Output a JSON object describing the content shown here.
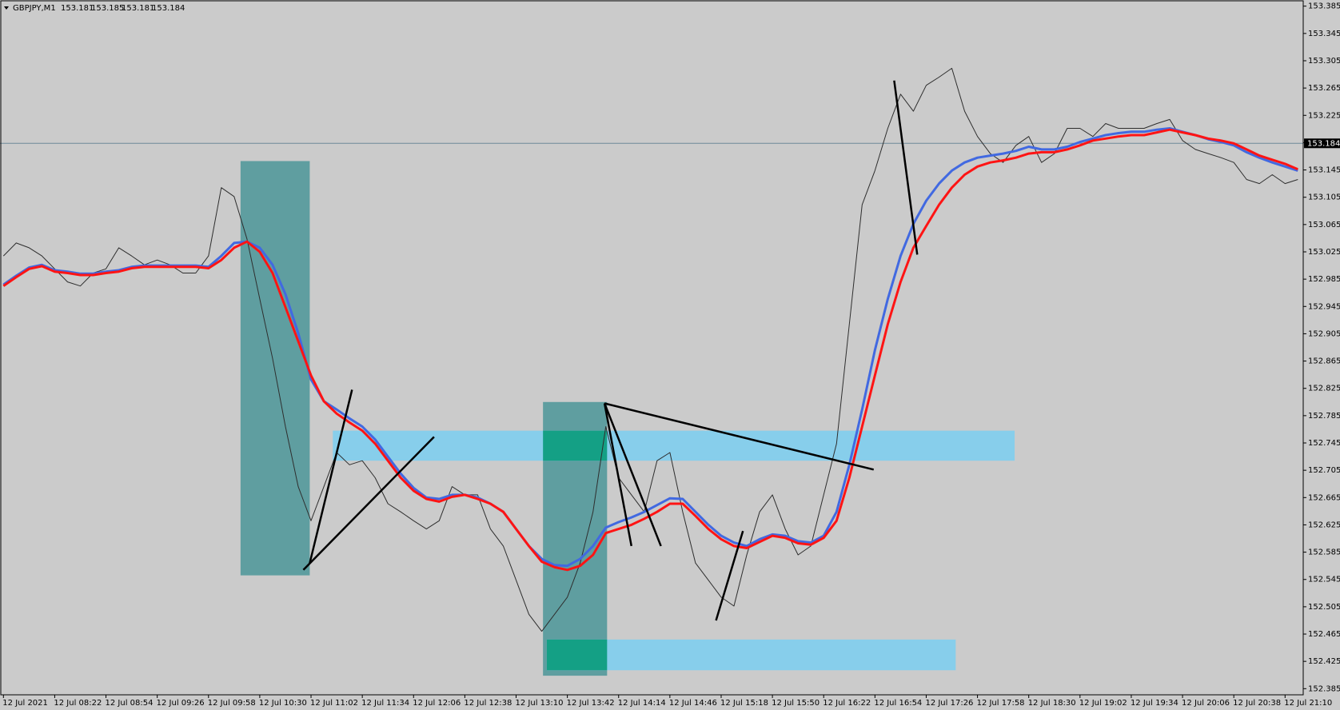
{
  "chart_data": {
    "type": "line",
    "header": {
      "symbol": "GBPJPY,M1",
      "open": 153.181,
      "high": 153.185,
      "low": 153.181,
      "close": 153.184
    },
    "current_price": 153.184,
    "categories": [
      "12 Jul 2021",
      null,
      null,
      null,
      "12 Jul 08:22",
      null,
      null,
      null,
      "12 Jul 08:54",
      null,
      null,
      null,
      "12 Jul 09:26",
      null,
      null,
      null,
      "12 Jul 09:58",
      null,
      null,
      null,
      "12 Jul 10:30",
      null,
      null,
      null,
      "12 Jul 11:02",
      null,
      null,
      null,
      "12 Jul 11:34",
      null,
      null,
      null,
      "12 Jul 12:06",
      null,
      null,
      null,
      "12 Jul 12:38",
      null,
      null,
      null,
      "12 Jul 13:10",
      null,
      null,
      null,
      "12 Jul 13:42",
      null,
      null,
      null,
      "12 Jul 14:14",
      null,
      null,
      null,
      "12 Jul 14:46",
      null,
      null,
      null,
      "12 Jul 15:18",
      null,
      null,
      null,
      "12 Jul 15:50",
      null,
      null,
      null,
      "12 Jul 16:22",
      null,
      null,
      null,
      "12 Jul 16:54",
      null,
      null,
      null,
      "12 Jul 17:26",
      null,
      null,
      null,
      "12 Jul 17:58",
      null,
      null,
      null,
      "12 Jul 18:30",
      null,
      null,
      null,
      "12 Jul 19:02",
      null,
      null,
      null,
      "12 Jul 19:34",
      null,
      null,
      null,
      "12 Jul 20:06",
      null,
      null,
      null,
      "12 Jul 20:38",
      null,
      null,
      null,
      "12 Jul 21:10",
      null
    ],
    "series": [
      {
        "color": "#2e2e2e",
        "values": [
          153.019,
          153.038,
          153.031,
          153.019,
          153.0,
          152.981,
          152.975,
          152.994,
          153.0,
          153.031,
          153.019,
          153.006,
          153.013,
          153.006,
          152.994,
          152.994,
          153.019,
          153.119,
          153.106,
          153.044,
          152.956,
          152.869,
          152.769,
          152.681,
          152.631,
          152.681,
          152.731,
          152.713,
          152.719,
          152.694,
          152.656,
          152.644,
          152.631,
          152.619,
          152.631,
          152.681,
          152.669,
          152.669,
          152.619,
          152.594,
          152.544,
          152.494,
          152.469,
          152.494,
          152.519,
          152.569,
          152.644,
          152.769,
          152.694,
          152.669,
          152.644,
          152.719,
          152.731,
          152.644,
          152.569,
          152.544,
          152.519,
          152.506,
          152.581,
          152.644,
          152.669,
          152.619,
          152.581,
          152.594,
          152.669,
          152.744,
          152.919,
          153.094,
          153.144,
          153.206,
          153.256,
          153.231,
          153.269,
          153.281,
          153.294,
          153.231,
          153.194,
          153.169,
          153.156,
          153.181,
          153.194,
          153.156,
          153.169,
          153.206,
          153.206,
          153.194,
          153.213,
          153.206,
          153.206,
          153.206,
          153.213,
          153.219,
          153.188,
          153.175,
          153.169,
          153.163,
          153.156,
          153.131,
          153.125,
          153.138,
          153.125,
          153.131
        ]
      },
      {
        "color": "#4169e1",
        "values": [
          152.977,
          152.99,
          153.002,
          153.006,
          152.998,
          152.996,
          152.993,
          152.993,
          152.996,
          152.998,
          153.003,
          153.005,
          153.005,
          153.005,
          153.005,
          153.005,
          153.003,
          153.019,
          153.038,
          153.04,
          153.031,
          153.006,
          152.963,
          152.906,
          152.838,
          152.806,
          152.794,
          152.781,
          152.769,
          152.75,
          152.725,
          152.7,
          152.679,
          152.665,
          152.663,
          152.669,
          152.669,
          152.665,
          152.656,
          152.644,
          152.619,
          152.594,
          152.575,
          152.566,
          152.565,
          152.575,
          152.594,
          152.621,
          152.629,
          152.636,
          152.644,
          152.654,
          152.664,
          152.663,
          152.644,
          152.625,
          152.609,
          152.599,
          152.594,
          152.604,
          152.611,
          152.609,
          152.601,
          152.599,
          152.609,
          152.644,
          152.713,
          152.794,
          152.881,
          152.956,
          153.019,
          153.066,
          153.1,
          153.125,
          153.144,
          153.156,
          153.163,
          153.166,
          153.169,
          153.173,
          153.179,
          153.175,
          153.175,
          153.179,
          153.186,
          153.191,
          153.196,
          153.199,
          153.201,
          153.201,
          153.204,
          153.206,
          153.201,
          153.196,
          153.19,
          153.186,
          153.181,
          153.171,
          153.163,
          153.156,
          153.15,
          153.144
        ]
      },
      {
        "color": "#ff1414",
        "values": [
          152.975,
          152.988,
          153.0,
          153.004,
          152.996,
          152.994,
          152.991,
          152.991,
          152.994,
          152.996,
          153.001,
          153.003,
          153.003,
          153.003,
          153.003,
          153.003,
          153.001,
          153.013,
          153.031,
          153.04,
          153.025,
          152.994,
          152.944,
          152.894,
          152.844,
          152.806,
          152.788,
          152.775,
          152.763,
          152.744,
          152.719,
          152.694,
          152.675,
          152.663,
          152.659,
          152.666,
          152.669,
          152.663,
          152.656,
          152.644,
          152.619,
          152.594,
          152.571,
          152.563,
          152.559,
          152.565,
          152.581,
          152.613,
          152.619,
          152.625,
          152.634,
          152.644,
          152.656,
          152.656,
          152.638,
          152.619,
          152.604,
          152.594,
          152.591,
          152.6,
          152.609,
          152.606,
          152.598,
          152.596,
          152.606,
          152.631,
          152.694,
          152.769,
          152.844,
          152.919,
          152.981,
          153.031,
          153.063,
          153.094,
          153.119,
          153.138,
          153.15,
          153.156,
          153.159,
          153.163,
          153.169,
          153.171,
          153.171,
          153.175,
          153.181,
          153.188,
          153.191,
          153.194,
          153.196,
          153.196,
          153.2,
          153.204,
          153.2,
          153.196,
          153.191,
          153.188,
          153.184,
          153.175,
          153.166,
          153.16,
          153.154,
          153.146
        ]
      }
    ],
    "zones": [
      {
        "color": "#5f9ea0",
        "x0": 18.5,
        "x1": 23.9,
        "y0": 152.551,
        "y1": 153.158
      },
      {
        "color": "#5f9ea0",
        "x0": 42.1,
        "x1": 47.1,
        "y0": 152.404,
        "y1": 152.805
      },
      {
        "color": "#87ceeb",
        "x0": 25.7,
        "x1": 78.9,
        "y0": 152.719,
        "y1": 152.763
      },
      {
        "color": "#87ceeb",
        "x0": 42.4,
        "x1": 74.3,
        "y0": 152.412,
        "y1": 152.457
      }
    ],
    "overlap_color": "#14a085",
    "trendlines": [
      {
        "x0": 23.4,
        "y0": 152.559,
        "x1": 33.6,
        "y1": 152.754
      },
      {
        "x0": 23.9,
        "y0": 152.569,
        "x1": 27.2,
        "y1": 152.823
      },
      {
        "x0": 46.9,
        "y0": 152.803,
        "x1": 67.9,
        "y1": 152.706
      },
      {
        "x0": 46.9,
        "y0": 152.803,
        "x1": 49.0,
        "y1": 152.594
      },
      {
        "x0": 46.9,
        "y0": 152.803,
        "x1": 51.3,
        "y1": 152.594
      },
      {
        "x0": 55.6,
        "y0": 152.485,
        "x1": 57.7,
        "y1": 152.616
      },
      {
        "x0": 69.5,
        "y0": 153.276,
        "x1": 71.3,
        "y1": 153.021
      }
    ],
    "ylim": [
      152.376,
      153.394
    ],
    "yticks": [
      153.385,
      153.345,
      153.305,
      153.265,
      153.225,
      153.185,
      153.145,
      153.105,
      153.065,
      153.025,
      152.985,
      152.945,
      152.905,
      152.865,
      152.825,
      152.785,
      152.745,
      152.705,
      152.665,
      152.625,
      152.585,
      152.545,
      152.505,
      152.465,
      152.425,
      152.385
    ]
  }
}
